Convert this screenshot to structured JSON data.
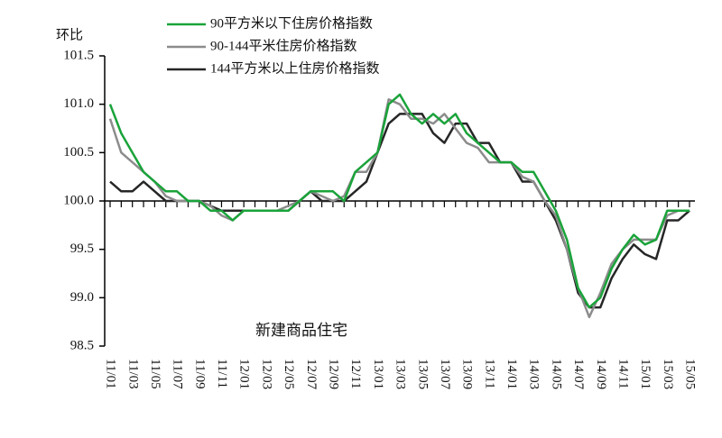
{
  "chart_data": {
    "type": "line",
    "y_label": "环比",
    "annotation": "新建商品住宅",
    "categories": [
      "11/01",
      null,
      "11/03",
      null,
      "11/05",
      null,
      "11/07",
      null,
      "11/09",
      null,
      "11/11",
      null,
      "12/01",
      null,
      "12/03",
      null,
      "12/05",
      null,
      "12/07",
      null,
      "12/09",
      null,
      "12/11",
      null,
      "13/01",
      null,
      "13/03",
      null,
      "13/05",
      null,
      "13/07",
      null,
      "13/09",
      null,
      "13/11",
      null,
      "14/01",
      null,
      "14/03",
      null,
      "14/05",
      null,
      "14/07",
      null,
      "14/09",
      null,
      "14/11",
      null,
      "15/01",
      null,
      "15/03",
      null,
      "15/05"
    ],
    "series": [
      {
        "name": "90平方米以下住房价格指数",
        "color": "#1aa33a",
        "values": [
          101.0,
          100.7,
          100.5,
          100.3,
          100.2,
          100.1,
          100.1,
          100.0,
          100.0,
          99.9,
          99.9,
          99.8,
          99.9,
          99.9,
          99.9,
          99.9,
          99.9,
          100.0,
          100.1,
          100.1,
          100.1,
          100.0,
          100.3,
          100.4,
          100.5,
          101.0,
          101.1,
          100.9,
          100.8,
          100.9,
          100.8,
          100.9,
          100.7,
          100.6,
          100.5,
          100.4,
          100.4,
          100.3,
          100.3,
          100.1,
          99.9,
          99.6,
          99.1,
          98.9,
          99.0,
          99.3,
          99.5,
          99.65,
          99.55,
          99.6,
          99.9,
          99.9,
          99.9
        ]
      },
      {
        "name": "90-144平米住房价格指数",
        "color": "#8c8c8c",
        "values": [
          100.85,
          100.5,
          100.4,
          100.3,
          100.2,
          100.05,
          100.0,
          100.0,
          100.0,
          99.95,
          99.85,
          99.8,
          99.9,
          99.9,
          99.9,
          99.9,
          99.95,
          100.0,
          100.1,
          100.05,
          100.0,
          100.05,
          100.3,
          100.3,
          100.5,
          101.05,
          101.0,
          100.85,
          100.85,
          100.8,
          100.9,
          100.75,
          100.6,
          100.55,
          100.4,
          100.4,
          100.4,
          100.25,
          100.2,
          100.0,
          99.85,
          99.5,
          99.1,
          98.8,
          99.05,
          99.35,
          99.5,
          99.6,
          99.6,
          99.6,
          99.85,
          99.9,
          99.9
        ]
      },
      {
        "name": "144平方米以上住房价格指数",
        "color": "#262626",
        "values": [
          100.2,
          100.1,
          100.1,
          100.2,
          100.1,
          100.0,
          100.0,
          100.0,
          100.0,
          99.95,
          99.9,
          99.9,
          99.9,
          99.9,
          99.9,
          99.9,
          99.9,
          100.0,
          100.1,
          100.0,
          100.0,
          100.0,
          100.1,
          100.2,
          100.5,
          100.8,
          100.9,
          100.9,
          100.9,
          100.7,
          100.6,
          100.8,
          100.8,
          100.6,
          100.6,
          100.4,
          100.4,
          100.2,
          100.2,
          100.0,
          99.8,
          99.5,
          99.05,
          98.9,
          98.9,
          99.2,
          99.4,
          99.55,
          99.45,
          99.4,
          99.8,
          99.8,
          99.9
        ]
      }
    ],
    "ylim": [
      98.5,
      101.5
    ],
    "yticks": [
      98.5,
      {
        "value": 99,
        "label": "99.0"
      },
      99.5,
      {
        "value": 100,
        "label": "100.0"
      },
      100.5,
      {
        "value": 101,
        "label": "101.0"
      },
      101.5
    ],
    "x_axis_at": {
      "value": 100,
      "label": "100.0"
    }
  }
}
